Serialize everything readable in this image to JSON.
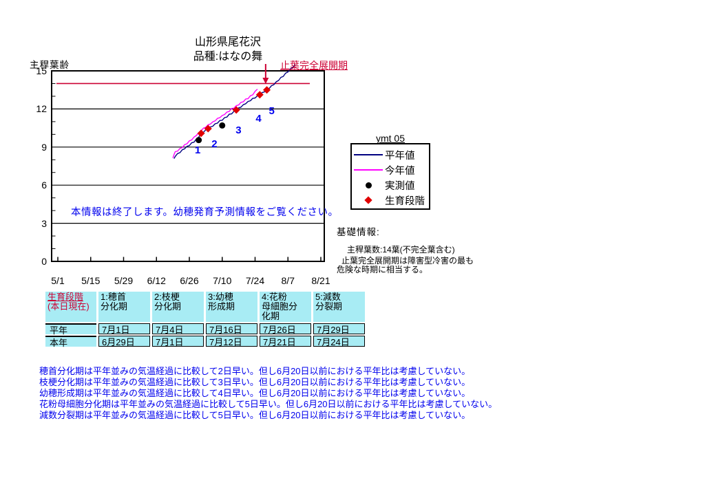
{
  "title": "山形県尾花沢",
  "subtitle": "品種:はなの舞",
  "y_axis_label": "主稈葉齢",
  "annotation_label": "止葉完全展開期",
  "in_chart_message": "本情報は終了します。幼穂発育予測情報をご覧ください。",
  "legend": {
    "title": "ymt 05",
    "items": [
      {
        "label": "平年値",
        "marker": "navy-line"
      },
      {
        "label": "今年値",
        "marker": "magenta-line"
      },
      {
        "label": "実測値",
        "marker": "black-dot"
      },
      {
        "label": "生育段階",
        "marker": "red-diamond"
      }
    ]
  },
  "info_panel": {
    "heading": "基礎情報:",
    "lines": [
      "主稈葉数:14葉(不完全葉含む)",
      "止葉完全展開期は障害型冷害の最も",
      "危険な時期に相当する。"
    ]
  },
  "stage_table": {
    "corner": [
      "生育段階",
      "(本日現在)"
    ],
    "columns": [
      [
        "1:穂首",
        "分化期"
      ],
      [
        "2:枝梗",
        "分化期"
      ],
      [
        "3:幼穂",
        "形成期"
      ],
      [
        "4:花粉",
        "母細胞分",
        "化期"
      ],
      [
        "5:減数",
        "分裂期"
      ]
    ],
    "rows": [
      {
        "label": "平年",
        "values": [
          "7月1日",
          "7月4日",
          "7月16日",
          "7月26日",
          "7月29日"
        ]
      },
      {
        "label": "本年",
        "values": [
          "6月29日",
          "7月1日",
          "7月12日",
          "7月21日",
          "7月24日"
        ]
      }
    ]
  },
  "notes": [
    "穂首分化期は平年並みの気温経過に比較して2日早い。但し6月20日以前における平年比は考慮していない。",
    "枝梗分化期は平年並みの気温経過に比較して3日早い。但し6月20日以前における平年比は考慮していない。",
    "幼穂形成期は平年並みの気温経過に比較して4日早い。但し6月20日以前における平年比は考慮していない。",
    "花粉母細胞分化期は平年並みの気温経過に比較して5日早い。但し6月20日以前における平年比は考慮していない。",
    "減数分裂期は平年並みの気温経過に比較して5日早い。但し6月20日以前における平年比は考慮していない。"
  ],
  "colors": {
    "normal_year_line": "#000080",
    "this_year_line": "#ff00ff",
    "observed_dot": "#000000",
    "stage_diamond": "#e00000",
    "reference_red": "#cc0033",
    "blue_text": "#0000ee",
    "table_cell_cyan": "#a8ecf4",
    "table_header_red": "#cc0033"
  },
  "chart_data": {
    "type": "line",
    "title": "山形県尾花沢 品種:はなの舞",
    "ylabel": "主稈葉齢",
    "ylim": [
      0,
      15
    ],
    "y_ticks": [
      0,
      3,
      6,
      9,
      12,
      15
    ],
    "y_minor_tick_step": 1,
    "x_tick_labels": [
      "5/1",
      "5/15",
      "5/29",
      "6/12",
      "6/26",
      "7/10",
      "7/24",
      "8/7",
      "8/21"
    ],
    "x_tick_days": [
      0,
      14,
      28,
      42,
      56,
      70,
      84,
      98,
      112
    ],
    "grid": "horizontal-only",
    "legend_position": "right-outside",
    "reference_line": {
      "value": 14,
      "label": "止葉完全展開期",
      "day_span": [
        -0.6,
        107.3
      ],
      "arrow_day": 88.5
    },
    "series": [
      {
        "name": "平年値",
        "color": "#000080",
        "points": [
          [
            49.5,
            8.05
          ],
          [
            50,
            8.3
          ],
          [
            51,
            8.45
          ],
          [
            52,
            8.6
          ],
          [
            53,
            8.75
          ],
          [
            54,
            8.9
          ],
          [
            55,
            9.02
          ],
          [
            56,
            9.15
          ],
          [
            57,
            9.3
          ],
          [
            58,
            9.42
          ],
          [
            59,
            9.6
          ],
          [
            60,
            9.8
          ],
          [
            61,
            10.08
          ],
          [
            62,
            10.2
          ],
          [
            63,
            10.32
          ],
          [
            64,
            10.45
          ],
          [
            65,
            10.55
          ],
          [
            66,
            10.68
          ],
          [
            67,
            10.8
          ],
          [
            68,
            10.92
          ],
          [
            69,
            11.05
          ],
          [
            70,
            11.15
          ],
          [
            71,
            11.28
          ],
          [
            72,
            11.4
          ],
          [
            73,
            11.55
          ],
          [
            74,
            11.65
          ],
          [
            75,
            11.78
          ],
          [
            76,
            11.92
          ],
          [
            77,
            12.05
          ],
          [
            78,
            12.18
          ],
          [
            79,
            12.3
          ],
          [
            80,
            12.45
          ],
          [
            81,
            12.55
          ],
          [
            82,
            12.68
          ],
          [
            83,
            12.8
          ],
          [
            84,
            12.9
          ],
          [
            85,
            13.0
          ],
          [
            86,
            13.12
          ],
          [
            87,
            13.25
          ],
          [
            88,
            13.38
          ],
          [
            89,
            13.5
          ],
          [
            90,
            13.65
          ],
          [
            91,
            13.8
          ],
          [
            92,
            13.95
          ],
          [
            93,
            14.1
          ],
          [
            94,
            14.28
          ],
          [
            95,
            14.45
          ],
          [
            96,
            14.6
          ],
          [
            97,
            14.78
          ],
          [
            98,
            14.95
          ],
          [
            99,
            15.12
          ],
          [
            100,
            15.3
          ],
          [
            101,
            15.45
          ]
        ]
      },
      {
        "name": "今年値",
        "color": "#ff00ff",
        "points": [
          [
            49,
            8.1
          ],
          [
            49.5,
            8.45
          ],
          [
            50,
            8.6
          ],
          [
            51,
            8.72
          ],
          [
            52,
            8.85
          ],
          [
            53,
            9.0
          ],
          [
            54,
            9.15
          ],
          [
            55,
            9.3
          ],
          [
            56,
            9.45
          ],
          [
            57,
            9.6
          ],
          [
            58,
            9.75
          ],
          [
            59,
            9.95
          ],
          [
            60,
            10.1
          ],
          [
            61,
            10.32
          ],
          [
            62,
            10.45
          ],
          [
            63,
            10.6
          ],
          [
            64,
            10.72
          ],
          [
            65,
            10.85
          ],
          [
            66,
            10.95
          ],
          [
            67,
            11.1
          ],
          [
            68,
            11.22
          ],
          [
            69,
            11.35
          ],
          [
            70,
            11.45
          ],
          [
            71,
            11.6
          ],
          [
            72,
            11.72
          ],
          [
            73,
            11.85
          ],
          [
            74,
            12.0
          ],
          [
            75,
            12.1
          ],
          [
            76,
            12.22
          ],
          [
            77,
            12.35
          ],
          [
            78,
            12.48
          ],
          [
            79,
            12.6
          ],
          [
            80,
            12.75
          ],
          [
            81,
            12.85
          ],
          [
            82,
            13.0
          ],
          [
            83,
            13.15
          ],
          [
            84,
            13.35
          ],
          [
            85,
            13.6
          ]
        ]
      }
    ],
    "observed": {
      "name": "実測値",
      "points": [
        [
          60,
          9.55
        ],
        [
          70,
          10.7
        ]
      ]
    },
    "stages": {
      "name": "生育段階",
      "points": [
        {
          "label": "1",
          "day": 61,
          "value": 10.08
        },
        {
          "label": "2",
          "day": 64,
          "value": 10.45
        },
        {
          "label": "3",
          "day": 76,
          "value": 11.92
        },
        {
          "label": "4",
          "day": 86,
          "value": 13.12
        },
        {
          "label": "5",
          "day": 89,
          "value": 13.5
        }
      ]
    }
  }
}
